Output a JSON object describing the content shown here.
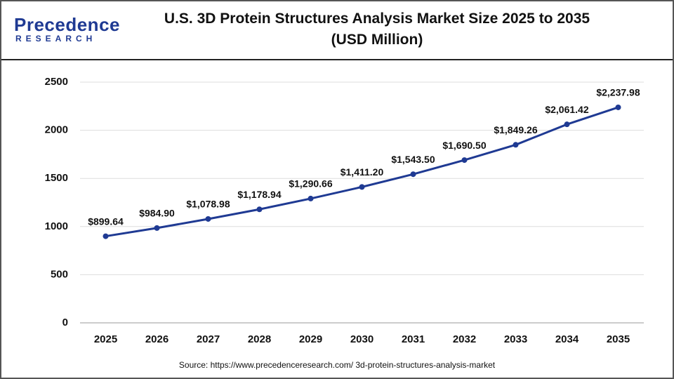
{
  "logo": {
    "name": "Precedence",
    "tagline": "RESEARCH"
  },
  "chart_data": {
    "type": "line",
    "title": "U.S. 3D Protein Structures Analysis Market Size 2025 to 2035 (USD Million)",
    "source": "Source: https://www.precedenceresearch.com/ 3d-protein-structures-analysis-market",
    "categories": [
      "2025",
      "2026",
      "2027",
      "2028",
      "2029",
      "2030",
      "2031",
      "2032",
      "2033",
      "2034",
      "2035"
    ],
    "values": [
      899.64,
      984.9,
      1078.98,
      1178.94,
      1290.66,
      1411.2,
      1543.5,
      1690.5,
      1849.26,
      2061.42,
      2237.98
    ],
    "value_labels": [
      "$899.64",
      "$984.90",
      "$1,078.98",
      "$1,178.94",
      "$1,290.66",
      "$1,411.20",
      "$1,543.50",
      "$1,690.50",
      "$1,849.26",
      "$2,061.42",
      "$2,237.98"
    ],
    "color": "#1f3a93",
    "ylim": [
      0,
      2500
    ],
    "yticks": [
      0,
      500,
      1000,
      1500,
      2000,
      2500
    ],
    "grid": true
  }
}
